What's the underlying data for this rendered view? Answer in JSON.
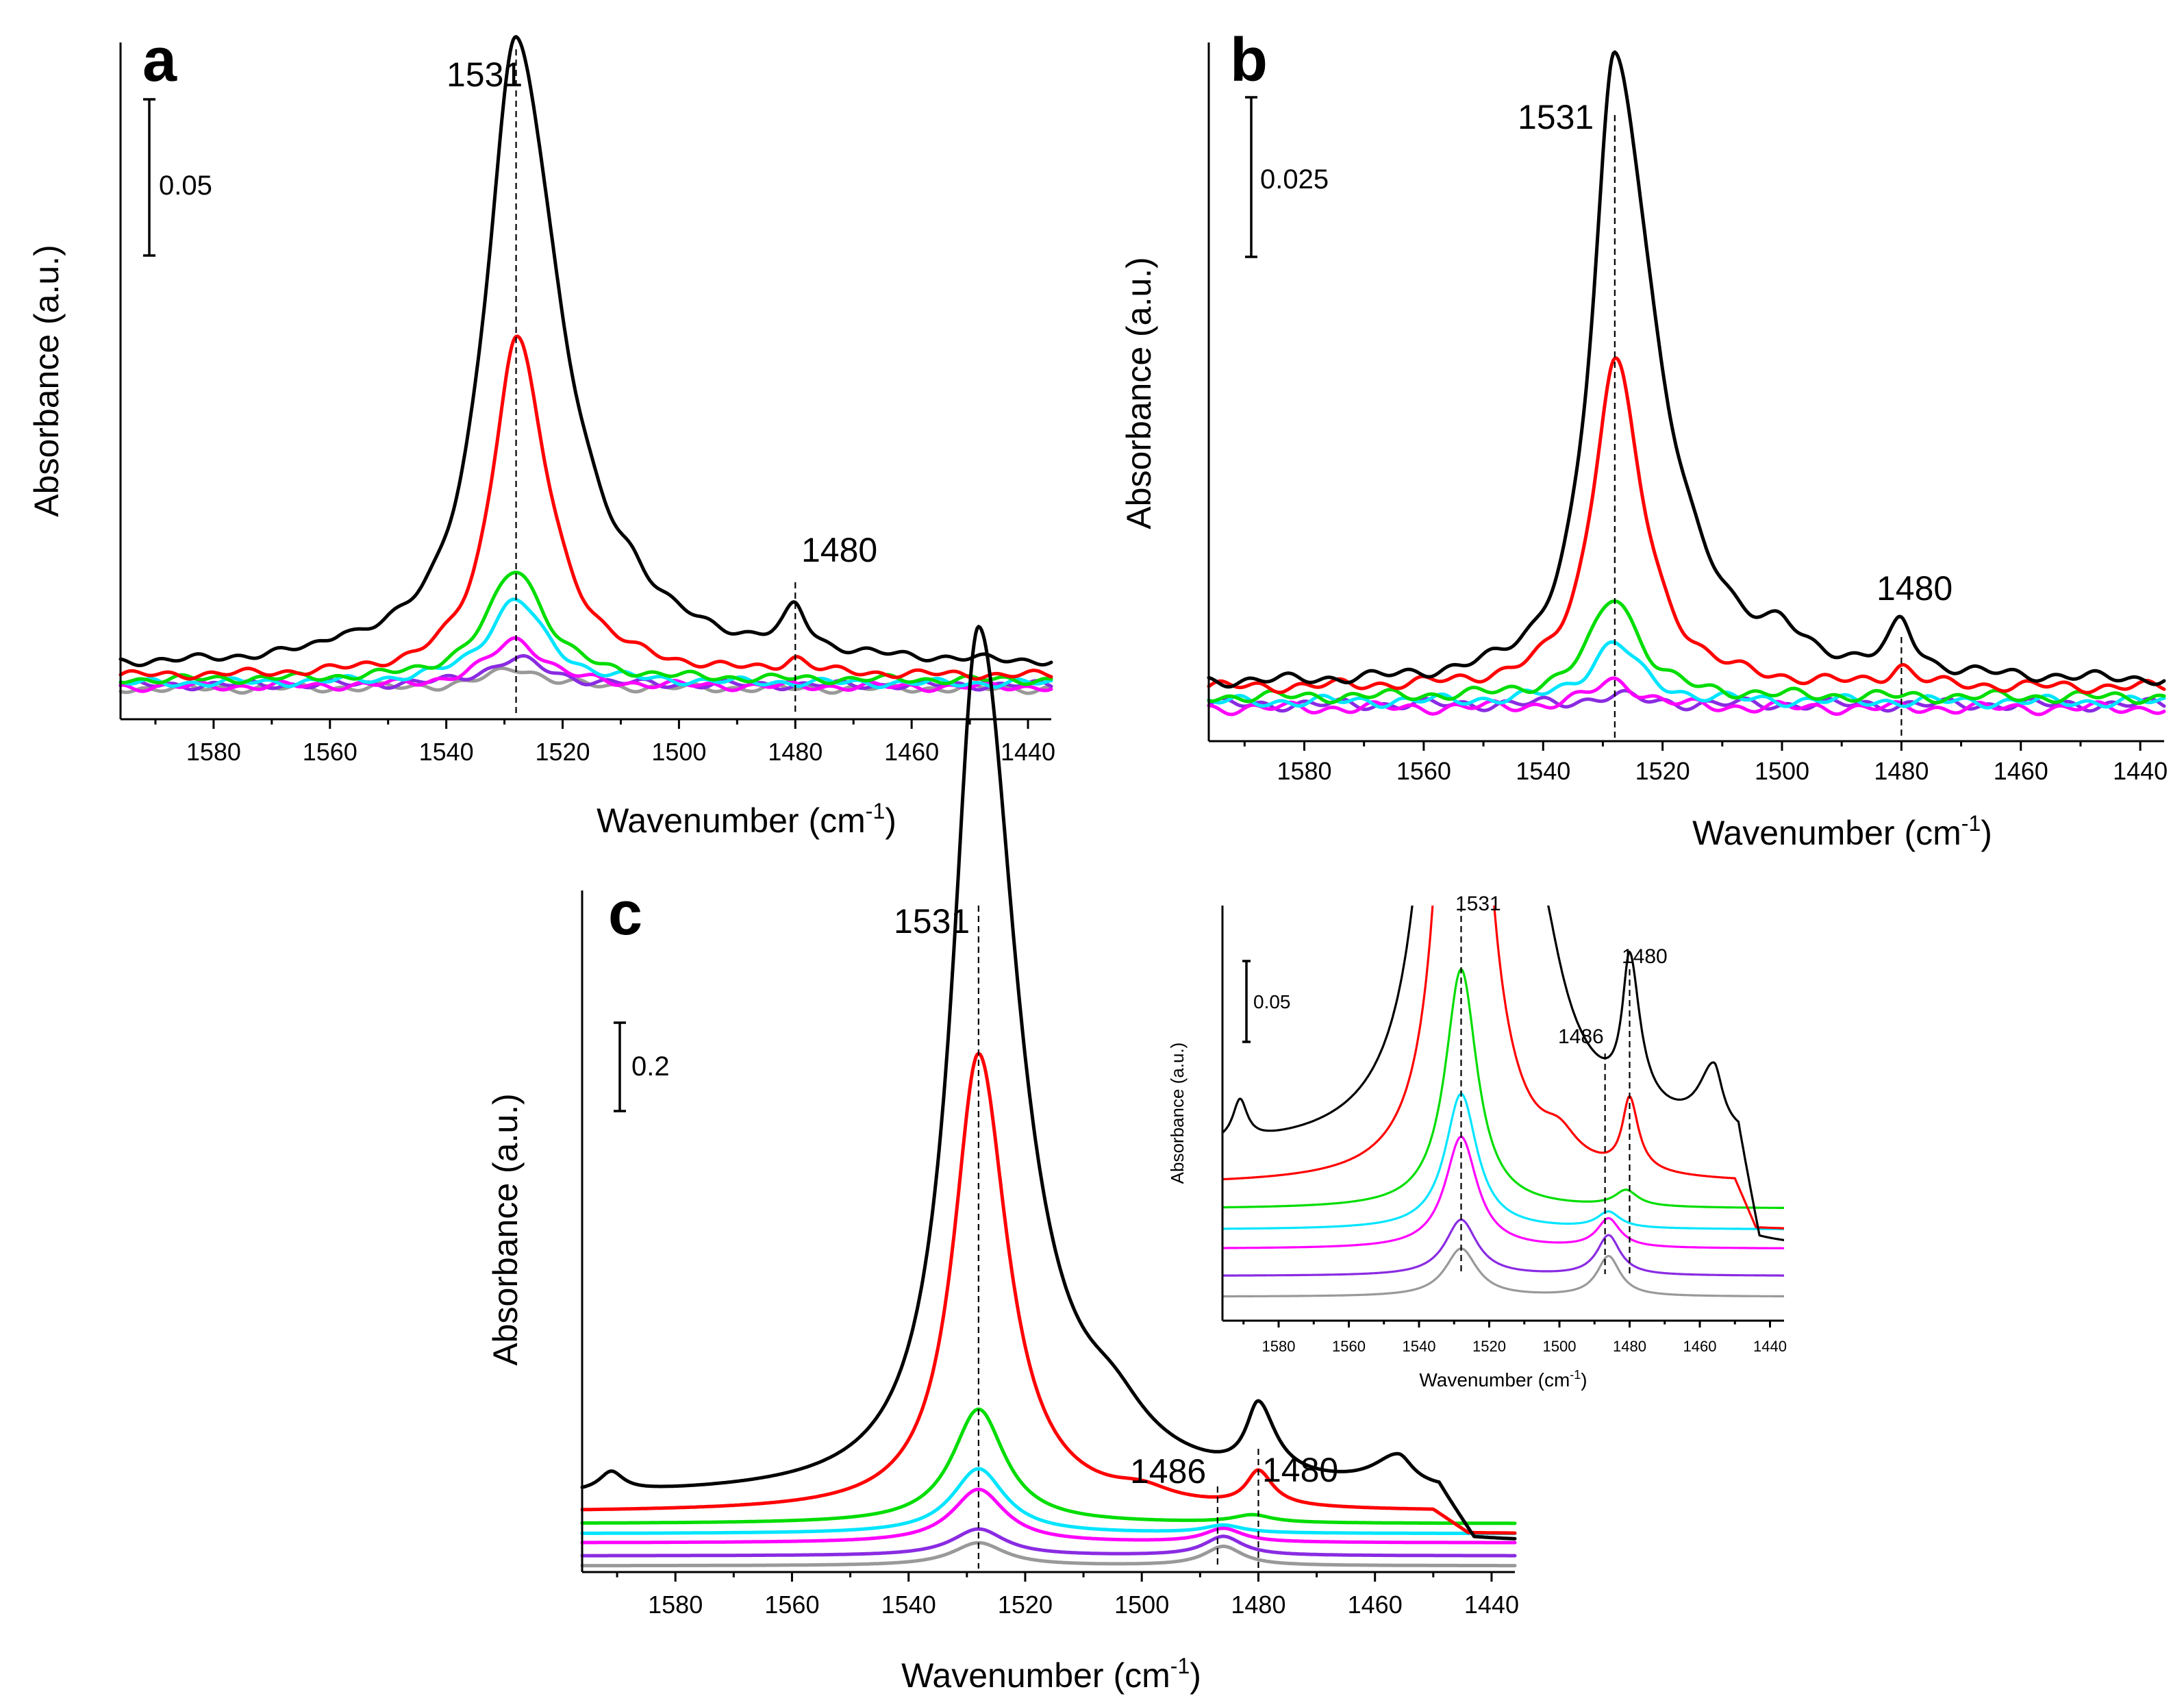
{
  "figure": {
    "background": "#ffffff"
  },
  "chart_data": [
    {
      "panel": "a",
      "type": "line",
      "xlabel": "Wavenumber (cm",
      "xlabel_sup": "-1",
      "xlabel_close": ")",
      "ylabel": "Absorbance (a.u.)",
      "xlim": [
        1596,
        1436
      ],
      "xticks": [
        1580,
        1560,
        1540,
        1520,
        1500,
        1480,
        1460,
        1440
      ],
      "scale_bar_label": "0.05",
      "scale_bar_value": 0.05,
      "peak_labels": [
        {
          "wavenumber": 1531,
          "label": "1531"
        },
        {
          "wavenumber": 1480,
          "label": "1480"
        }
      ],
      "reference_lines": [
        1528,
        1480
      ],
      "series": [
        {
          "name": "black",
          "color": "#000000",
          "baseline": 0.005,
          "peaks": [
            [
              1528,
              0.187,
              6.3,
              9.0
            ],
            [
              1480,
              0.012,
              2.5,
              2.5
            ],
            [
              1558,
              0.003,
              2.5,
              2.5
            ],
            [
              1508,
              0.004,
              3.0,
              3.0
            ]
          ]
        },
        {
          "name": "red",
          "color": "#ff0000",
          "baseline": 0.002,
          "peaks": [
            [
              1528,
              0.101,
              5.0,
              6.5
            ],
            [
              1480,
              0.004,
              2.5,
              2.5
            ]
          ]
        },
        {
          "name": "green",
          "color": "#00dd00",
          "baseline": 0.001,
          "peaks": [
            [
              1528,
              0.033,
              6.0,
              6.0
            ]
          ]
        },
        {
          "name": "cyan",
          "color": "#00e5ff",
          "baseline": 0.0,
          "peaks": [
            [
              1528,
              0.025,
              6.0,
              6.0
            ]
          ]
        },
        {
          "name": "magenta",
          "color": "#ff00ff",
          "baseline": -0.001,
          "peaks": [
            [
              1528,
              0.014,
              6.0,
              6.0
            ]
          ]
        },
        {
          "name": "purple",
          "color": "#8a2be2",
          "baseline": -0.0005,
          "peaks": [
            [
              1528,
              0.008,
              6.0,
              6.0
            ]
          ]
        },
        {
          "name": "gray",
          "color": "#999999",
          "baseline": -0.0015,
          "peaks": [
            [
              1528,
              0.006,
              6.0,
              6.0
            ]
          ]
        }
      ]
    },
    {
      "panel": "b",
      "type": "line",
      "xlabel": "Wavenumber (cm",
      "xlabel_sup": "-1",
      "xlabel_close": ")",
      "ylabel": "Absorbance (a.u.)",
      "xlim": [
        1596,
        1436
      ],
      "xticks": [
        1580,
        1560,
        1540,
        1520,
        1500,
        1480,
        1460,
        1440
      ],
      "scale_bar_label": "0.025",
      "scale_bar_value": 0.025,
      "peak_labels": [
        {
          "wavenumber": 1531,
          "label": "1531"
        },
        {
          "wavenumber": 1480,
          "label": "1480"
        }
      ],
      "reference_lines": [
        1528,
        1480
      ],
      "series": [
        {
          "name": "black",
          "color": "#000000",
          "baseline": 0.0015,
          "peaks": [
            [
              1528,
              0.069,
              4.5,
              8.0
            ],
            [
              1480,
              0.005,
              2.5,
              2.5
            ],
            [
              1500,
              0.002,
              3.0,
              3.0
            ]
          ]
        },
        {
          "name": "red",
          "color": "#ff0000",
          "baseline": 0.001,
          "peaks": [
            [
              1528,
              0.036,
              4.5,
              5.5
            ],
            [
              1480,
              0.002,
              2.5,
              2.5
            ]
          ]
        },
        {
          "name": "green",
          "color": "#00dd00",
          "baseline": 0.0,
          "peaks": [
            [
              1528,
              0.011,
              5.0,
              5.0
            ]
          ]
        },
        {
          "name": "cyan",
          "color": "#00e5ff",
          "baseline": -0.0005,
          "peaks": [
            [
              1528,
              0.0065,
              5.0,
              5.0
            ]
          ]
        },
        {
          "name": "magenta",
          "color": "#ff00ff",
          "baseline": -0.0012,
          "peaks": [
            [
              1528,
              0.003,
              5.0,
              5.0
            ]
          ]
        },
        {
          "name": "purple",
          "color": "#8a2be2",
          "baseline": -0.0008,
          "peaks": [
            [
              1528,
              0.001,
              5.0,
              5.0
            ]
          ]
        }
      ]
    },
    {
      "panel": "c",
      "type": "line",
      "xlabel": "Wavenumber (cm",
      "xlabel_sup": "-1",
      "xlabel_close": ")",
      "ylabel": "Absorbance (a.u.)",
      "xlim": [
        1596,
        1436
      ],
      "xticks": [
        1580,
        1560,
        1540,
        1520,
        1500,
        1480,
        1460,
        1440
      ],
      "scale_bar_label": "0.2",
      "scale_bar_value": 0.2,
      "peak_labels": [
        {
          "wavenumber": 1531,
          "label": "1531"
        },
        {
          "wavenumber": 1486,
          "label": "1486"
        },
        {
          "wavenumber": 1480,
          "label": "1480"
        }
      ],
      "reference_lines": [
        1528,
        1487,
        1480
      ],
      "series": [
        {
          "name": "black",
          "color": "#000000",
          "baseline": 0.065,
          "peaks": [
            [
              1528,
              1.135,
              5.5,
              8.0
            ],
            [
              1480,
              0.09,
              2.5,
              3.5
            ],
            [
              1505,
              0.05,
              7.0,
              7.0
            ],
            [
              1456,
              0.04,
              5.0,
              3.0
            ],
            [
              1591,
              0.025,
              2.5,
              2.5
            ]
          ],
          "tail": {
            "end": 1449,
            "value": -0.065
          }
        },
        {
          "name": "red",
          "color": "#ff0000",
          "baseline": 0.045,
          "peaks": [
            [
              1528,
              0.6,
              5.2,
              6.0
            ],
            [
              1480,
              0.045,
              2.5,
              3.0
            ],
            [
              1500,
              0.015,
              6.0,
              6.0
            ]
          ],
          "tail": {
            "end": 1450,
            "value": -0.03
          }
        },
        {
          "name": "green",
          "color": "#00dd00",
          "baseline": 0.03,
          "peaks": [
            [
              1528,
              0.15,
              5.5,
              5.5
            ],
            [
              1481,
              0.01,
              4.0,
              4.0
            ]
          ]
        },
        {
          "name": "cyan",
          "color": "#00e5ff",
          "baseline": 0.017,
          "peaks": [
            [
              1528,
              0.085,
              5.5,
              5.5
            ],
            [
              1486,
              0.01,
              4.0,
              4.0
            ]
          ]
        },
        {
          "name": "magenta",
          "color": "#ff00ff",
          "baseline": 0.005,
          "peaks": [
            [
              1528,
              0.07,
              5.5,
              5.5
            ],
            [
              1486,
              0.018,
              4.0,
              4.0
            ]
          ]
        },
        {
          "name": "purple",
          "color": "#8a2be2",
          "baseline": -0.012,
          "peaks": [
            [
              1528,
              0.035,
              5.5,
              5.5
            ],
            [
              1486,
              0.025,
              4.0,
              4.0
            ]
          ]
        },
        {
          "name": "gray",
          "color": "#999999",
          "baseline": -0.025,
          "peaks": [
            [
              1528,
              0.03,
              5.5,
              5.5
            ],
            [
              1486,
              0.025,
              4.0,
              4.0
            ]
          ]
        }
      ]
    },
    {
      "panel": "c-inset",
      "type": "line",
      "xlabel": "Wavenumber (cm",
      "xlabel_sup": "-1",
      "xlabel_close": ")",
      "ylabel": "Absorbance (a.u.)",
      "xlim": [
        1596,
        1436
      ],
      "xticks": [
        1580,
        1560,
        1540,
        1520,
        1500,
        1480,
        1460,
        1440
      ],
      "ylim": [
        -0.04,
        0.22
      ],
      "scale_bar_label": "0.05",
      "scale_bar_value": 0.05,
      "peak_labels": [
        {
          "wavenumber": 1531,
          "label": "1531"
        },
        {
          "wavenumber": 1486,
          "label": "1486"
        },
        {
          "wavenumber": 1480,
          "label": "1480"
        }
      ],
      "reference_lines": [
        1528,
        1487,
        1480
      ],
      "series": [
        {
          "name": "black",
          "color": "#000000",
          "baseline": 0.065,
          "peaks": [
            [
              1528,
              1.135,
              5.5,
              8.0
            ],
            [
              1480,
              0.09,
              2.5,
              3.5
            ],
            [
              1505,
              0.05,
              7.0,
              7.0
            ],
            [
              1456,
              0.04,
              5.0,
              3.0
            ],
            [
              1591,
              0.025,
              2.5,
              2.5
            ]
          ],
          "tail": {
            "end": 1449,
            "value": -0.065
          }
        },
        {
          "name": "red",
          "color": "#ff0000",
          "baseline": 0.045,
          "peaks": [
            [
              1528,
              0.6,
              5.2,
              6.0
            ],
            [
              1480,
              0.045,
              2.5,
              3.0
            ],
            [
              1500,
              0.015,
              6.0,
              6.0
            ]
          ],
          "tail": {
            "end": 1450,
            "value": -0.03
          }
        },
        {
          "name": "green",
          "color": "#00dd00",
          "baseline": 0.03,
          "peaks": [
            [
              1528,
              0.15,
              5.5,
              5.5
            ],
            [
              1481,
              0.01,
              4.0,
              4.0
            ]
          ]
        },
        {
          "name": "cyan",
          "color": "#00e5ff",
          "baseline": 0.017,
          "peaks": [
            [
              1528,
              0.085,
              5.5,
              5.5
            ],
            [
              1486,
              0.01,
              4.0,
              4.0
            ]
          ]
        },
        {
          "name": "magenta",
          "color": "#ff00ff",
          "baseline": 0.005,
          "peaks": [
            [
              1528,
              0.07,
              5.5,
              5.5
            ],
            [
              1486,
              0.018,
              4.0,
              4.0
            ]
          ]
        },
        {
          "name": "purple",
          "color": "#8a2be2",
          "baseline": -0.012,
          "peaks": [
            [
              1528,
              0.035,
              5.5,
              5.5
            ],
            [
              1486,
              0.025,
              4.0,
              4.0
            ]
          ]
        },
        {
          "name": "gray",
          "color": "#999999",
          "baseline": -0.025,
          "peaks": [
            [
              1528,
              0.03,
              5.5,
              5.5
            ],
            [
              1486,
              0.025,
              4.0,
              4.0
            ]
          ]
        }
      ]
    }
  ]
}
